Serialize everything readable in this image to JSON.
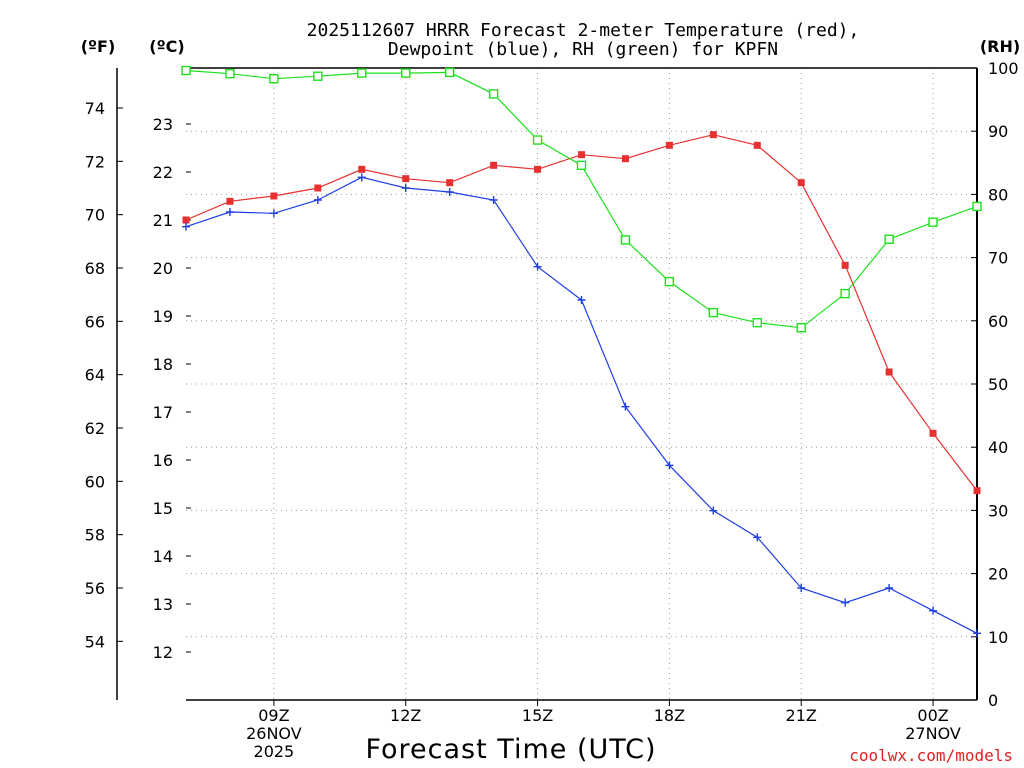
{
  "chart_data": {
    "type": "line",
    "title_line1": "2025112607 HRRR Forecast 2-meter Temperature (red),",
    "title_line2": "Dewpoint (blue), RH (green) for KPFN",
    "units": {
      "f": "(ºF)",
      "c": "(ºC)",
      "rh": "(RH)"
    },
    "xlabel": "Forecast Time (UTC)",
    "credit": "coolwx.com/models",
    "x_hours": [
      7,
      8,
      9,
      10,
      11,
      12,
      13,
      14,
      15,
      16,
      17,
      18,
      19,
      20,
      21,
      22,
      23,
      24,
      25
    ],
    "xlim": [
      7,
      25
    ],
    "x_ticks": [
      {
        "hour": 9,
        "lines": [
          "09Z",
          "26NOV",
          "2025"
        ]
      },
      {
        "hour": 12,
        "lines": [
          "12Z"
        ]
      },
      {
        "hour": 15,
        "lines": [
          "15Z"
        ]
      },
      {
        "hour": 18,
        "lines": [
          "18Z"
        ]
      },
      {
        "hour": 21,
        "lines": [
          "21Z"
        ]
      },
      {
        "hour": 24,
        "lines": [
          "00Z",
          "27NOV"
        ]
      }
    ],
    "y_left_f": {
      "ticks": [
        "74",
        "72",
        "70",
        "68",
        "66",
        "64",
        "62",
        "60",
        "58",
        "56",
        "54"
      ],
      "range": [
        51.8,
        75.5
      ]
    },
    "y_left_c": {
      "ticks": [
        "23",
        "22",
        "21",
        "20",
        "19",
        "18",
        "17",
        "16",
        "15",
        "14",
        "13",
        "12"
      ],
      "range": [
        11,
        24.1667
      ]
    },
    "y_right_rh": {
      "ticks": [
        "100",
        "90",
        "80",
        "70",
        "60",
        "50",
        "40",
        "30",
        "20",
        "10",
        "0"
      ],
      "range": [
        0,
        100
      ]
    },
    "series": [
      {
        "name": "Temperature",
        "unit": "F",
        "color": "#e83030",
        "marker": "filled-square",
        "values": [
          69.8,
          70.5,
          70.7,
          71.0,
          71.7,
          71.35,
          71.2,
          71.85,
          71.7,
          72.25,
          72.1,
          72.6,
          73.0,
          72.6,
          71.2,
          68.1,
          64.1,
          61.8,
          59.65
        ]
      },
      {
        "name": "Dewpoint",
        "unit": "F",
        "color": "#1f3fe6",
        "marker": "plus",
        "values": [
          69.55,
          70.1,
          70.05,
          70.55,
          71.4,
          71.0,
          70.85,
          70.55,
          68.05,
          66.8,
          62.8,
          60.6,
          58.9,
          57.9,
          56.0,
          55.45,
          56.0,
          55.15,
          54.3
        ]
      },
      {
        "name": "RH",
        "unit": "%",
        "color": "#1ee01e",
        "marker": "open-square",
        "values": [
          99.6,
          99.1,
          98.3,
          98.7,
          99.2,
          99.2,
          99.3,
          95.9,
          88.6,
          84.6,
          72.8,
          66.2,
          61.3,
          59.7,
          58.9,
          64.3,
          72.9,
          75.6,
          78.1
        ]
      }
    ]
  }
}
